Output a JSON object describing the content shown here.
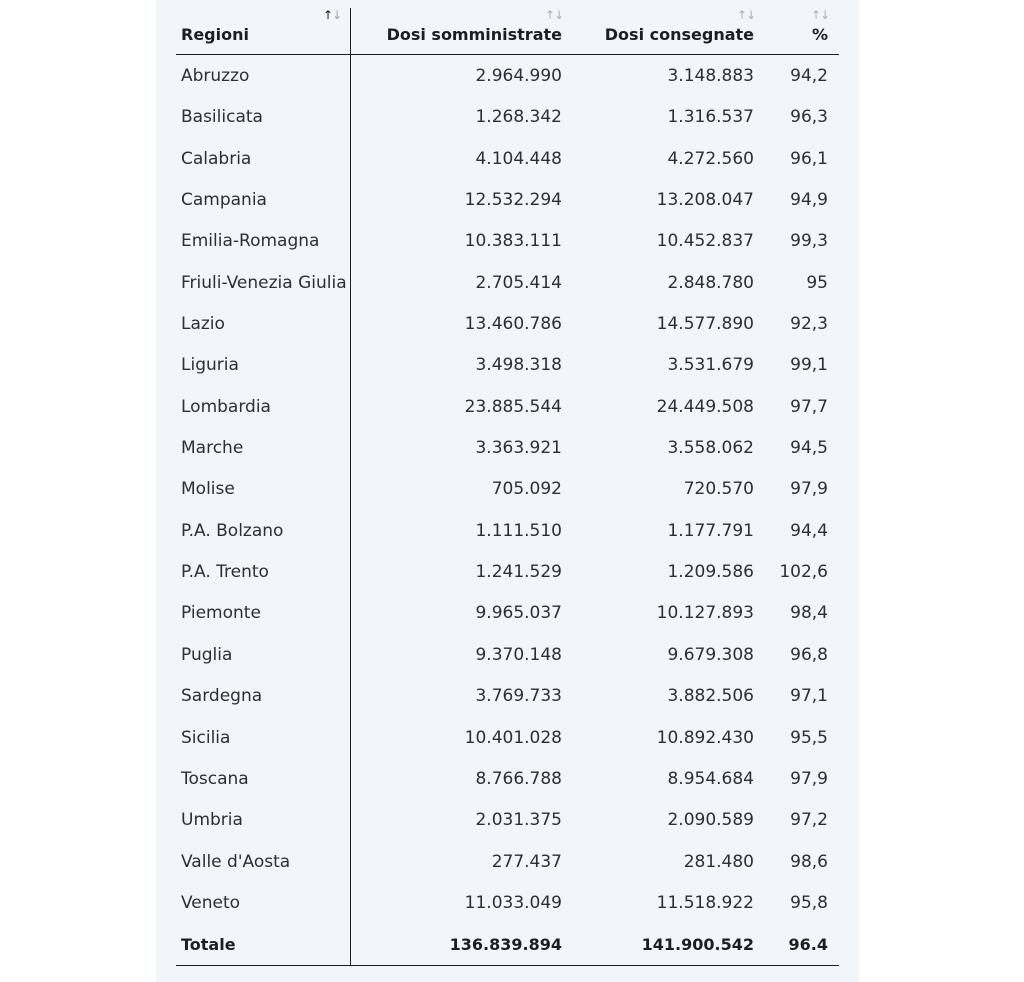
{
  "table": {
    "headers": {
      "regioni": "Regioni",
      "dosi_somministrate": "Dosi somministrate",
      "dosi_consegnate": "Dosi consegnate",
      "percent": "%"
    },
    "sort_glyphs": {
      "up": "↑",
      "down": "↓"
    },
    "rows": [
      {
        "regione": "Abruzzo",
        "somministrate": "2.964.990",
        "consegnate": "3.148.883",
        "pct": "94,2"
      },
      {
        "regione": "Basilicata",
        "somministrate": "1.268.342",
        "consegnate": "1.316.537",
        "pct": "96,3"
      },
      {
        "regione": "Calabria",
        "somministrate": "4.104.448",
        "consegnate": "4.272.560",
        "pct": "96,1"
      },
      {
        "regione": "Campania",
        "somministrate": "12.532.294",
        "consegnate": "13.208.047",
        "pct": "94,9"
      },
      {
        "regione": "Emilia-Romagna",
        "somministrate": "10.383.111",
        "consegnate": "10.452.837",
        "pct": "99,3"
      },
      {
        "regione": "Friuli-Venezia Giulia",
        "somministrate": "2.705.414",
        "consegnate": "2.848.780",
        "pct": "95"
      },
      {
        "regione": "Lazio",
        "somministrate": "13.460.786",
        "consegnate": "14.577.890",
        "pct": "92,3"
      },
      {
        "regione": "Liguria",
        "somministrate": "3.498.318",
        "consegnate": "3.531.679",
        "pct": "99,1"
      },
      {
        "regione": "Lombardia",
        "somministrate": "23.885.544",
        "consegnate": "24.449.508",
        "pct": "97,7"
      },
      {
        "regione": "Marche",
        "somministrate": "3.363.921",
        "consegnate": "3.558.062",
        "pct": "94,5"
      },
      {
        "regione": "Molise",
        "somministrate": "705.092",
        "consegnate": "720.570",
        "pct": "97,9"
      },
      {
        "regione": "P.A. Bolzano",
        "somministrate": "1.111.510",
        "consegnate": "1.177.791",
        "pct": "94,4"
      },
      {
        "regione": "P.A. Trento",
        "somministrate": "1.241.529",
        "consegnate": "1.209.586",
        "pct": "102,6"
      },
      {
        "regione": "Piemonte",
        "somministrate": "9.965.037",
        "consegnate": "10.127.893",
        "pct": "98,4"
      },
      {
        "regione": "Puglia",
        "somministrate": "9.370.148",
        "consegnate": "9.679.308",
        "pct": "96,8"
      },
      {
        "regione": "Sardegna",
        "somministrate": "3.769.733",
        "consegnate": "3.882.506",
        "pct": "97,1"
      },
      {
        "regione": "Sicilia",
        "somministrate": "10.401.028",
        "consegnate": "10.892.430",
        "pct": "95,5"
      },
      {
        "regione": "Toscana",
        "somministrate": "8.766.788",
        "consegnate": "8.954.684",
        "pct": "97,9"
      },
      {
        "regione": "Umbria",
        "somministrate": "2.031.375",
        "consegnate": "2.090.589",
        "pct": "97,2"
      },
      {
        "regione": "Valle d'Aosta",
        "somministrate": "277.437",
        "consegnate": "281.480",
        "pct": "98,6"
      },
      {
        "regione": "Veneto",
        "somministrate": "11.033.049",
        "consegnate": "11.518.922",
        "pct": "95,8"
      }
    ],
    "total": {
      "regione": "Totale",
      "somministrate": "136.839.894",
      "consegnate": "141.900.542",
      "pct": "96.4"
    }
  }
}
